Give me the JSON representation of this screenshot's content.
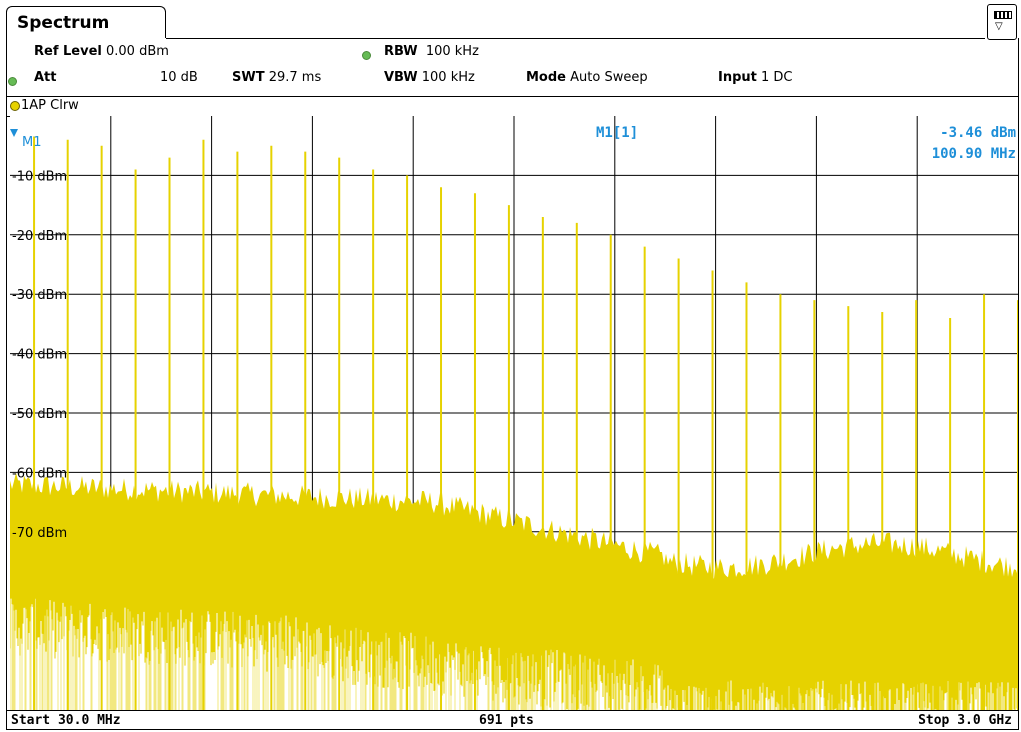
{
  "tab": {
    "title": "Spectrum"
  },
  "settings": {
    "ref_level_label": "Ref Level",
    "ref_level_value": "0.00 dBm",
    "rbw_label": "RBW",
    "rbw_value": "100 kHz",
    "att_label": "Att",
    "att_value": "10 dB",
    "swt_label": "SWT",
    "swt_value": "29.7 ms",
    "vbw_label": "VBW",
    "vbw_value": "100 kHz",
    "mode_label": "Mode",
    "mode_value": "Auto Sweep",
    "input_label": "Input",
    "input_value": "1 DC"
  },
  "trace": {
    "label": "1AP Clrw"
  },
  "marker": {
    "name": "M1",
    "readout_label": "M1[1]",
    "level": "-3.46 dBm",
    "freq": "100.90 MHz"
  },
  "footer": {
    "start": "Start 30.0 MHz",
    "points": "691 pts",
    "stop": "Stop 3.0 GHz"
  },
  "colors": {
    "trace": "#e6d200",
    "marker": "#1e8fd8",
    "grid": "#000000"
  },
  "chart_data": {
    "type": "line",
    "title": "",
    "xlabel": "",
    "ylabel": "",
    "x_range_mhz": [
      30,
      3000
    ],
    "ylim": [
      -100,
      0
    ],
    "y_tick_labels": [
      "-10 dBm",
      "-20 dBm",
      "-30 dBm",
      "-40 dBm",
      "-50 dBm",
      "-60 dBm",
      "-70 dBm"
    ],
    "y_tick_values": [
      -10,
      -20,
      -30,
      -40,
      -50,
      -60,
      -70
    ],
    "grid": true,
    "series": [
      {
        "spurs_mhz": [
          100.9,
          200,
          300,
          400,
          500,
          600,
          700,
          800,
          900,
          1000,
          1100,
          1200,
          1300,
          1400,
          1500,
          1600,
          1700,
          1800,
          1900,
          2000,
          2100,
          2200,
          2300,
          2400,
          2500,
          2600,
          2700,
          2800,
          2900,
          3000
        ],
        "spurs_dbm": [
          -3.46,
          -4,
          -5,
          -9,
          -7,
          -4,
          -6,
          -5,
          -6,
          -7,
          -9,
          -10,
          -12,
          -13,
          -15,
          -17,
          -18,
          -20,
          -22,
          -24,
          -26,
          -28,
          -30,
          -31,
          -32,
          -33,
          -31,
          -34,
          -30,
          -31
        ]
      }
    ]
  }
}
